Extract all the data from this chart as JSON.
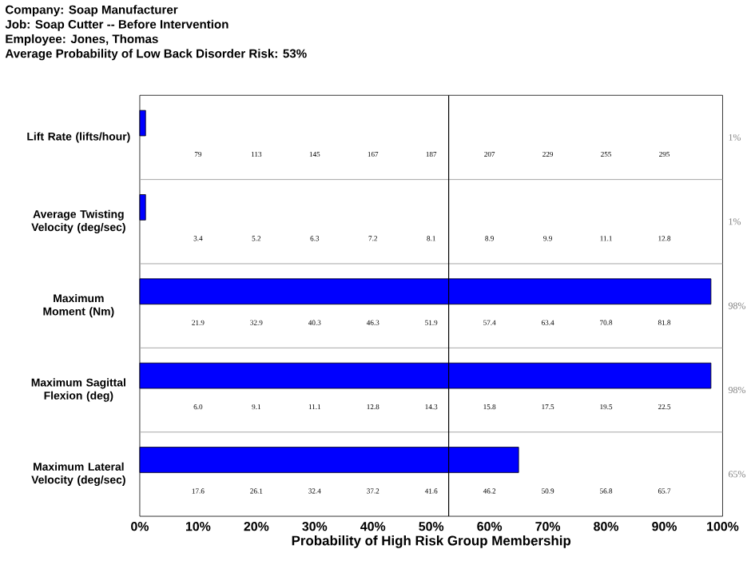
{
  "chart_data": {
    "type": "bar",
    "orientation": "horizontal",
    "title": "Company: Soap Manufacturer",
    "subtitle": "Job:  Soap Cutter -- Before Intervention",
    "categories": [
      "Lift Rate (lifts/hour)",
      "Average Twisting Velocity (deg/sec)",
      "Maximum Moment (Nm)",
      "Maximum Sagittal Flexion (deg)",
      "Maximum Lateral Velocity (deg/sec)"
    ],
    "values": [
      1,
      1,
      98,
      98,
      65
    ],
    "color": "#0000ff",
    "xlabel": "Probability of High Risk Group Membership",
    "xlim": [
      0,
      100
    ],
    "xticks": [
      {
        "value": 0,
        "label": "0%"
      },
      {
        "value": 10,
        "label": "10%"
      },
      {
        "value": 20,
        "label": "20%"
      },
      {
        "value": 30,
        "label": "30%"
      },
      {
        "value": 40,
        "label": "40%"
      },
      {
        "value": 50,
        "label": "50%"
      },
      {
        "value": 60,
        "label": "60%"
      },
      {
        "value": 70,
        "label": "70%"
      },
      {
        "value": 80,
        "label": "80%"
      },
      {
        "value": 90,
        "label": "90%"
      },
      {
        "value": 100,
        "label": "100%"
      }
    ],
    "ref_lines": [
      {
        "axis": "x",
        "value": 53,
        "color": "#000000"
      }
    ],
    "annotations": [
      "Employee:  Jones, Thomas",
      "Average Probability of Low Back Disorder Risk: 53%",
      "1%",
      "1%",
      "98%",
      "98%",
      "65%",
      "79",
      "113",
      "145",
      "167",
      "187",
      "207",
      "229",
      "255",
      "295",
      "3.4",
      "5.2",
      "6.3",
      "7.2",
      "8.1",
      "8.9",
      "9.9",
      "11.1",
      "12.8",
      "21.9",
      "32.9",
      "40.3",
      "46.3",
      "51.9",
      "57.4",
      "63.4",
      "70.8",
      "81.8",
      "6.0",
      "9.1",
      "11.1",
      "12.8",
      "14.3",
      "15.8",
      "17.5",
      "19.5",
      "22.5",
      "17.6",
      "26.1",
      "32.4",
      "37.2",
      "41.6",
      "46.2",
      "50.9",
      "56.8",
      "65.7"
    ]
  }
}
